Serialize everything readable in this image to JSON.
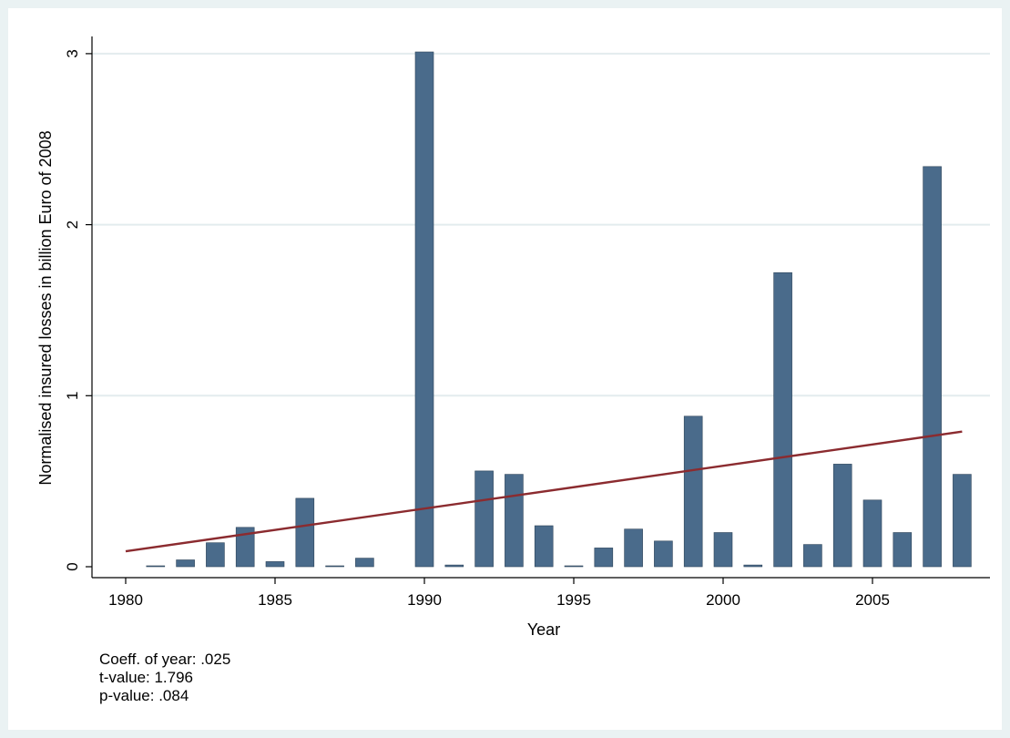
{
  "chart_data": {
    "type": "bar",
    "xlabel": "Year",
    "ylabel": "Normalised insured losses in billion Euro of 2008",
    "xlim": [
      1980,
      2008
    ],
    "ylim": [
      0,
      3
    ],
    "x_ticks": [
      1980,
      1985,
      1990,
      1995,
      2000,
      2005
    ],
    "y_ticks": [
      0,
      1,
      2,
      3
    ],
    "grid": "horizontal",
    "categories": [
      1981,
      1982,
      1983,
      1984,
      1985,
      1986,
      1987,
      1988,
      1990,
      1991,
      1992,
      1993,
      1994,
      1995,
      1996,
      1997,
      1998,
      1999,
      2000,
      2001,
      2002,
      2003,
      2004,
      2005,
      2006,
      2007,
      2008
    ],
    "values": [
      0.005,
      0.04,
      0.14,
      0.23,
      0.03,
      0.4,
      0.005,
      0.05,
      3.01,
      0.01,
      0.56,
      0.54,
      0.24,
      0.005,
      0.11,
      0.22,
      0.15,
      0.88,
      0.2,
      0.01,
      1.72,
      0.13,
      0.6,
      0.39,
      0.2,
      2.34,
      0.54
    ],
    "trend_line": {
      "x": [
        1980,
        2008
      ],
      "y": [
        0.09,
        0.79
      ]
    },
    "colors": {
      "bars": "#4a6b8b",
      "trend": "#8b2b2f",
      "grid": "#e3ecee",
      "panel": "#ffffff",
      "background": "#eaf2f3"
    }
  },
  "notes": {
    "coeff": "Coeff. of year: .025",
    "tvalue": "t-value: 1.796",
    "pvalue": "p-value: .084"
  }
}
